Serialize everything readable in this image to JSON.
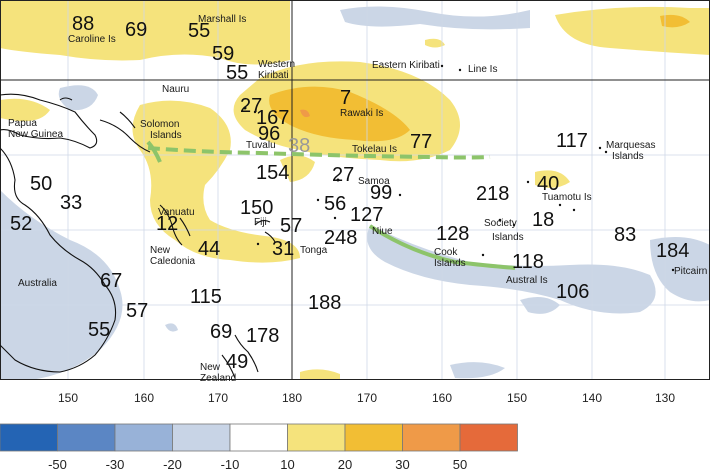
{
  "longitude_ticks": [
    "150",
    "160",
    "170",
    "180",
    "170",
    "160",
    "150",
    "140",
    "130"
  ],
  "legend": {
    "labels": [
      "-50",
      "-30",
      "-20",
      "-10",
      "10",
      "20",
      "30",
      "50"
    ],
    "colors": [
      "#2464b4",
      "#5b86c4",
      "#98b2d8",
      "#c8d4e6",
      "#ffffff",
      "#f5e37c",
      "#f2be34",
      "#ef9a48",
      "#e56a3a"
    ]
  },
  "places": {
    "caroline": "Caroline Is",
    "marshall": "Marshall Is",
    "western_kiribati_1": "Western",
    "western_kiribati_2": "Kiribati",
    "eastern_kiribati": "Eastern Kiribati",
    "line": "Line Is",
    "nauru": "Nauru",
    "png_1": "Papua",
    "png_2": "New Guinea",
    "solomon_1": "Solomon",
    "solomon_2": "Islands",
    "tuvalu": "Tuvalu",
    "tokelau": "Tokelau Is",
    "rawaki": "Rawaki Is",
    "samoa": "Samoa",
    "vanuatu": "Vanuatu",
    "fiji": "Fiji",
    "tonga": "Tonga",
    "niue": "Niue",
    "new_caledonia_1": "New",
    "new_caledonia_2": "Caledonia",
    "australia": "Australia",
    "cook_1": "Cook",
    "cook_2": "Islands",
    "society_1": "Society",
    "society_2": "Islands",
    "marquesas_1": "Marquesas",
    "marquesas_2": "Islands",
    "tuamotu": "Tuamotu Is",
    "austral": "Austral Is",
    "pitcairn": "Pitcairn",
    "nz_1": "New",
    "nz_2": "Zealand"
  },
  "values": {
    "caroline": "88",
    "c69": "69",
    "marshall": "55",
    "w59": "59",
    "w55": "55",
    "w27": "27",
    "w167": "167",
    "rawaki": "7",
    "tuvalu96": "96",
    "tuvalu38": "38",
    "tokelau": "77",
    "marq": "117",
    "tuam": "40",
    "s154": "154",
    "s27": "27",
    "samoa": "99",
    "f150": "150",
    "f57": "57",
    "f31": "31",
    "n56": "56",
    "n127": "127",
    "niue": "248",
    "c218": "218",
    "s18": "18",
    "c128": "128",
    "a118": "118",
    "a106": "106",
    "p83": "83",
    "p184": "184",
    "v12": "12",
    "nc44": "44",
    "au50": "50",
    "au33": "33",
    "au52": "52",
    "au67": "67",
    "au57": "57",
    "au55": "55",
    "t115": "115",
    "t188": "188",
    "nz69": "69",
    "nz178": "178",
    "nz49": "49"
  }
}
